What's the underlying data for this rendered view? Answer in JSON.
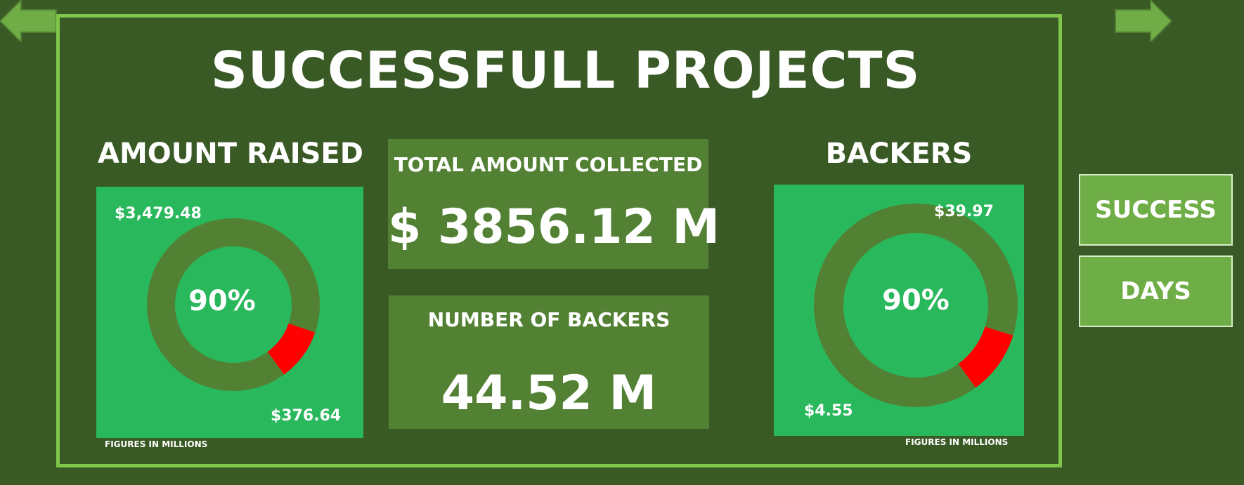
{
  "dashboard": {
    "title": "SUCCESSFULL PROJECTS"
  },
  "nav": {
    "back_icon": "arrow-left-icon",
    "forward_icon": "arrow-right-icon"
  },
  "amount_raised": {
    "title": "AMOUNT RAISED",
    "percent_label": "90%",
    "large_value_label": "$3,479.48",
    "small_value_label": "$376.64",
    "footnote": "FIGURES IN MILLIONS"
  },
  "backers": {
    "title": "BACKERS",
    "percent_label": "90%",
    "large_value_label": "$39.97",
    "small_value_label": "$4.55",
    "footnote": "FIGURES IN MILLIONS"
  },
  "kpis": {
    "total_amount": {
      "label": "TOTAL AMOUNT COLLECTED",
      "value": "$ 3856.12 M"
    },
    "backers_count": {
      "label": "NUMBER OF BACKERS",
      "value": "44.52 M"
    }
  },
  "buttons": {
    "success": "SUCCESS",
    "days": "DAYS"
  },
  "colors": {
    "background": "#3a5a25",
    "frame_border": "#7fc64a",
    "panel_green": "#29b85c",
    "donut_main": "#538134",
    "donut_highlight": "#ff0000",
    "card": "#538134",
    "button": "#6fae46"
  },
  "chart_data": [
    {
      "type": "pie",
      "categories": [
        "$3,479.48",
        "$376.64"
      ],
      "values": [
        3479.48,
        376.64
      ],
      "title": "AMOUNT RAISED",
      "center_label": "90%",
      "note": "FIGURES IN MILLIONS"
    },
    {
      "type": "pie",
      "categories": [
        "$39.97",
        "$4.55"
      ],
      "values": [
        39.97,
        4.55
      ],
      "title": "BACKERS",
      "center_label": "90%",
      "note": "FIGURES IN MILLIONS"
    }
  ]
}
